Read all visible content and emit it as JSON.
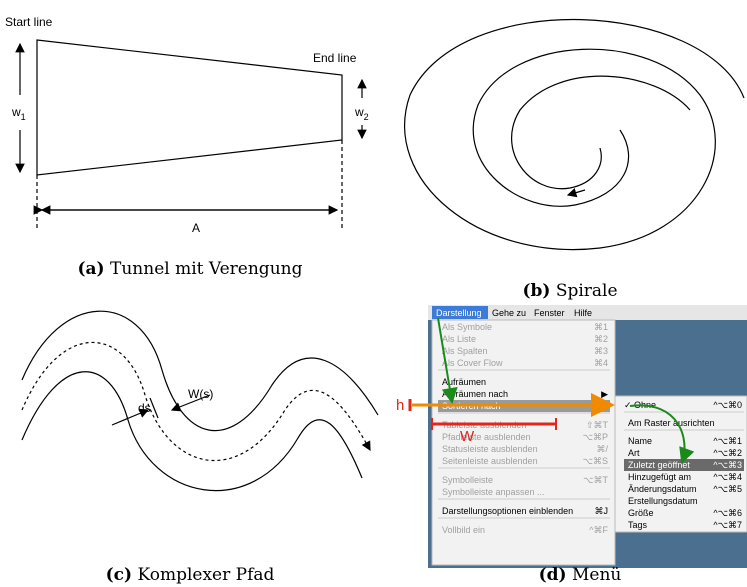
{
  "figures": {
    "a": {
      "start_label": "Start line",
      "end_label": "End line",
      "w1": {
        "letter": "w",
        "sub": "1"
      },
      "w2": {
        "letter": "w",
        "sub": "2"
      },
      "length_label": "A",
      "caption": {
        "label": "(a)",
        "text": "Tunnel mit Verengung"
      }
    },
    "b": {
      "caption": {
        "label": "(b)",
        "text": "Spirale"
      }
    },
    "c": {
      "width_label": "W(s)",
      "step_label": "ds",
      "caption": {
        "label": "(c)",
        "text": "Komplexer Pfad"
      }
    },
    "d": {
      "menubar": [
        "Darstellung",
        "Gehe zu",
        "Fenster",
        "Hilfe"
      ],
      "menu_groups": [
        [
          {
            "label": "Als Symbole",
            "shortcut": "⌘1",
            "disabled": true
          },
          {
            "label": "Als Liste",
            "shortcut": "⌘2",
            "disabled": true
          },
          {
            "label": "Als Spalten",
            "shortcut": "⌘3",
            "disabled": true
          },
          {
            "label": "Als Cover Flow",
            "shortcut": "⌘4",
            "disabled": true
          }
        ],
        [
          {
            "label": "Aufräumen"
          },
          {
            "label": "Aufräumen nach",
            "shortcut": "▶"
          },
          {
            "label": "Sortieren nach",
            "shortcut": "▶",
            "highlighted": true
          }
        ],
        [
          {
            "label": "Tableiste ausblenden",
            "shortcut": "⇧⌘T",
            "disabled": true
          },
          {
            "label": "Pfadleiste ausblenden",
            "shortcut": "⌥⌘P",
            "disabled": true
          },
          {
            "label": "Statusleiste ausblenden",
            "shortcut": "⌘/",
            "disabled": true
          },
          {
            "label": "Seitenleiste ausblenden",
            "shortcut": "⌥⌘S",
            "disabled": true
          }
        ],
        [
          {
            "label": "Symbolleiste",
            "shortcut": "⌥⌘T",
            "disabled": true
          },
          {
            "label": "Symbolleiste anpassen ...",
            "disabled": true
          }
        ],
        [
          {
            "label": "Darstellungsoptionen einblenden",
            "shortcut": "⌘J"
          }
        ],
        [
          {
            "label": "Vollbild ein",
            "shortcut": "^⌘F",
            "disabled": true
          }
        ]
      ],
      "submenu_groups": [
        [
          {
            "label": "Ohne",
            "shortcut": "^⌥⌘0",
            "checked_mark": "✓"
          }
        ],
        [
          {
            "label": "Am Raster ausrichten"
          }
        ],
        [
          {
            "label": "Name",
            "shortcut": "^⌥⌘1"
          },
          {
            "label": "Art",
            "shortcut": "^⌥⌘2"
          },
          {
            "label": "Zuletzt geöffnet",
            "shortcut": "^⌥⌘3",
            "highlighted": true
          },
          {
            "label": "Hinzugefügt am",
            "shortcut": "^⌥⌘4"
          },
          {
            "label": "Änderungsdatum",
            "shortcut": "^⌥⌘5"
          },
          {
            "label": "Erstellungsdatum"
          },
          {
            "label": "Größe",
            "shortcut": "^⌥⌘6"
          },
          {
            "label": "Tags",
            "shortcut": "^⌥⌘7"
          }
        ]
      ],
      "h_label": "h",
      "w_label": "W",
      "caption": {
        "label": "(d)",
        "text": "Menü"
      }
    }
  }
}
